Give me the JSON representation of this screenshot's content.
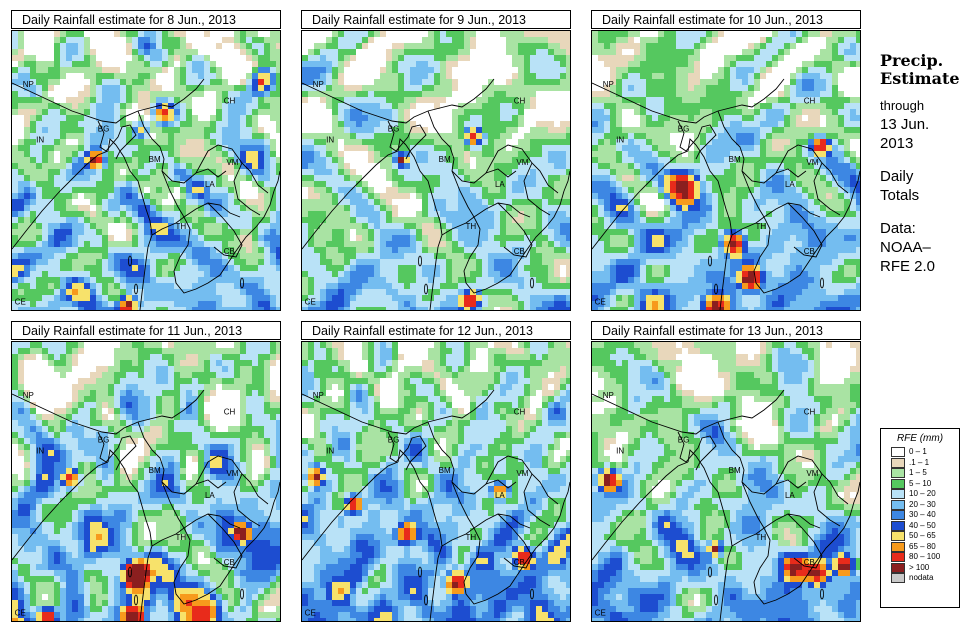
{
  "panels": [
    {
      "title": "Daily Rainfall estimate for  8 Jun., 2013",
      "seed": 3,
      "wetness": 0.55,
      "heavy": [
        [
          0.92,
          0.17,
          0.07
        ],
        [
          0.55,
          0.28,
          0.06
        ],
        [
          0.47,
          0.34,
          0.05
        ],
        [
          0.3,
          0.45,
          0.05
        ],
        [
          0.42,
          0.97,
          0.05
        ]
      ]
    },
    {
      "title": "Daily Rainfall estimate for  9 Jun., 2013",
      "seed": 7,
      "wetness": 0.45,
      "heavy": [
        [
          0.63,
          0.37,
          0.05
        ],
        [
          0.36,
          0.45,
          0.04
        ],
        [
          0.62,
          0.96,
          0.06
        ]
      ]
    },
    {
      "title": "Daily Rainfall estimate for  10 Jun., 2013",
      "seed": 11,
      "wetness": 0.62,
      "heavy": [
        [
          0.32,
          0.55,
          0.09
        ],
        [
          0.52,
          0.75,
          0.06
        ],
        [
          0.58,
          0.88,
          0.06
        ],
        [
          0.45,
          0.98,
          0.07
        ],
        [
          0.84,
          0.4,
          0.05
        ]
      ]
    },
    {
      "title": "Daily Rainfall estimate for  11 Jun., 2013",
      "seed": 19,
      "wetness": 0.68,
      "heavy": [
        [
          0.21,
          0.48,
          0.05
        ],
        [
          0.45,
          0.82,
          0.07
        ],
        [
          0.85,
          0.67,
          0.05
        ],
        [
          0.44,
          0.98,
          0.06
        ],
        [
          0.12,
          0.97,
          0.05
        ]
      ]
    },
    {
      "title": "Daily Rainfall estimate for  12 Jun., 2013",
      "seed": 23,
      "wetness": 0.7,
      "heavy": [
        [
          0.04,
          0.47,
          0.05
        ],
        [
          0.18,
          0.57,
          0.05
        ],
        [
          0.38,
          0.68,
          0.06
        ],
        [
          0.56,
          0.85,
          0.06
        ],
        [
          0.82,
          0.76,
          0.06
        ],
        [
          0.73,
          0.52,
          0.05
        ]
      ]
    },
    {
      "title": "Daily Rainfall estimate for  13 Jun., 2013",
      "seed": 29,
      "wetness": 0.6,
      "heavy": [
        [
          0.74,
          0.79,
          0.08
        ],
        [
          0.83,
          0.82,
          0.06
        ],
        [
          0.05,
          0.48,
          0.06
        ],
        [
          0.45,
          0.73,
          0.04
        ],
        [
          0.93,
          0.79,
          0.05
        ]
      ]
    }
  ],
  "country_labels": [
    "NP",
    "IN",
    "BG",
    "BM",
    "CH",
    "VM",
    "LA",
    "TH",
    "CB",
    "CE"
  ],
  "sidebar": {
    "heading_1": "Precip.",
    "heading_2": "Estimate",
    "through": "through",
    "date_1": "13 Jun.",
    "date_2": "2013",
    "totals_1": "Daily",
    "totals_2": "Totals",
    "data_1": "Data:",
    "data_2": "NOAA–",
    "data_3": "RFE 2.0"
  },
  "legend": {
    "title": "RFE (mm)",
    "items": [
      {
        "label": "0 – 1",
        "color": "#ffffff"
      },
      {
        "label": ".1 – 1",
        "color": "#e8d7bb"
      },
      {
        "label": "1 – 5",
        "color": "#a9e3a3"
      },
      {
        "label": "5 – 10",
        "color": "#55c85f"
      },
      {
        "label": "10 – 20",
        "color": "#b9e2f7"
      },
      {
        "label": "20 – 30",
        "color": "#74bdf0"
      },
      {
        "label": "30 – 40",
        "color": "#3d87e3"
      },
      {
        "label": "40 – 50",
        "color": "#1d4dd0"
      },
      {
        "label": "50 – 65",
        "color": "#f7e26b"
      },
      {
        "label": "65 – 80",
        "color": "#f79a1c"
      },
      {
        "label": "80 – 100",
        "color": "#e82b1b"
      },
      {
        "label": "> 100",
        "color": "#8b1f1f"
      },
      {
        "label": "nodata",
        "color": "#c9c9c9"
      }
    ]
  }
}
